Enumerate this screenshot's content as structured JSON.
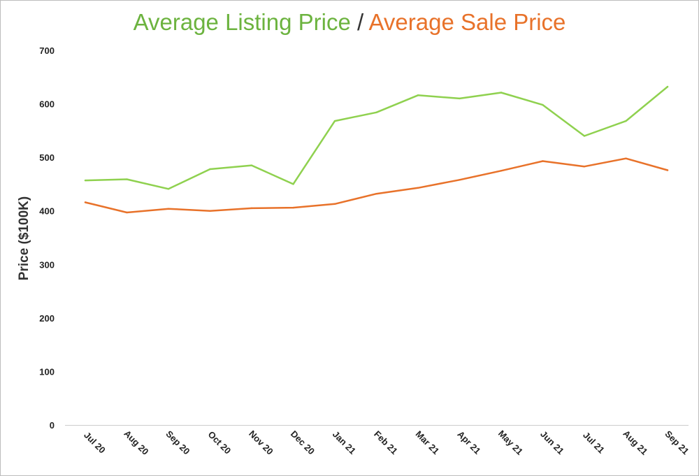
{
  "chart_data": {
    "type": "line",
    "title_parts": {
      "listing": "Average Listing Price",
      "separator": "/",
      "sale": "Average Sale Price"
    },
    "xlabel": "",
    "ylabel": "Price ($100K)",
    "ylim": [
      0,
      700
    ],
    "yticks": [
      "0",
      "100",
      "200",
      "300",
      "400",
      "500",
      "600",
      "700"
    ],
    "grid": false,
    "categories": [
      "Jul 20",
      "Aug 20",
      "Sep 20",
      "Oct 20",
      "Nov 20",
      "Dec 20",
      "Jan 21",
      "Feb 21",
      "Mar 21",
      "Apr 21",
      "May 21",
      "Jun 21",
      "Jul 21",
      "Aug 21",
      "Sep 21"
    ],
    "series": [
      {
        "name": "Average Listing Price",
        "color": "#8fd14f",
        "values": [
          457,
          459,
          441,
          478,
          485,
          450,
          568,
          584,
          616,
          610,
          621,
          598,
          540,
          568,
          632
        ]
      },
      {
        "name": "Average Sale Price",
        "color": "#e8722a",
        "values": [
          416,
          397,
          404,
          400,
          405,
          406,
          413,
          432,
          443,
          458,
          475,
          493,
          483,
          498,
          476
        ]
      }
    ]
  }
}
